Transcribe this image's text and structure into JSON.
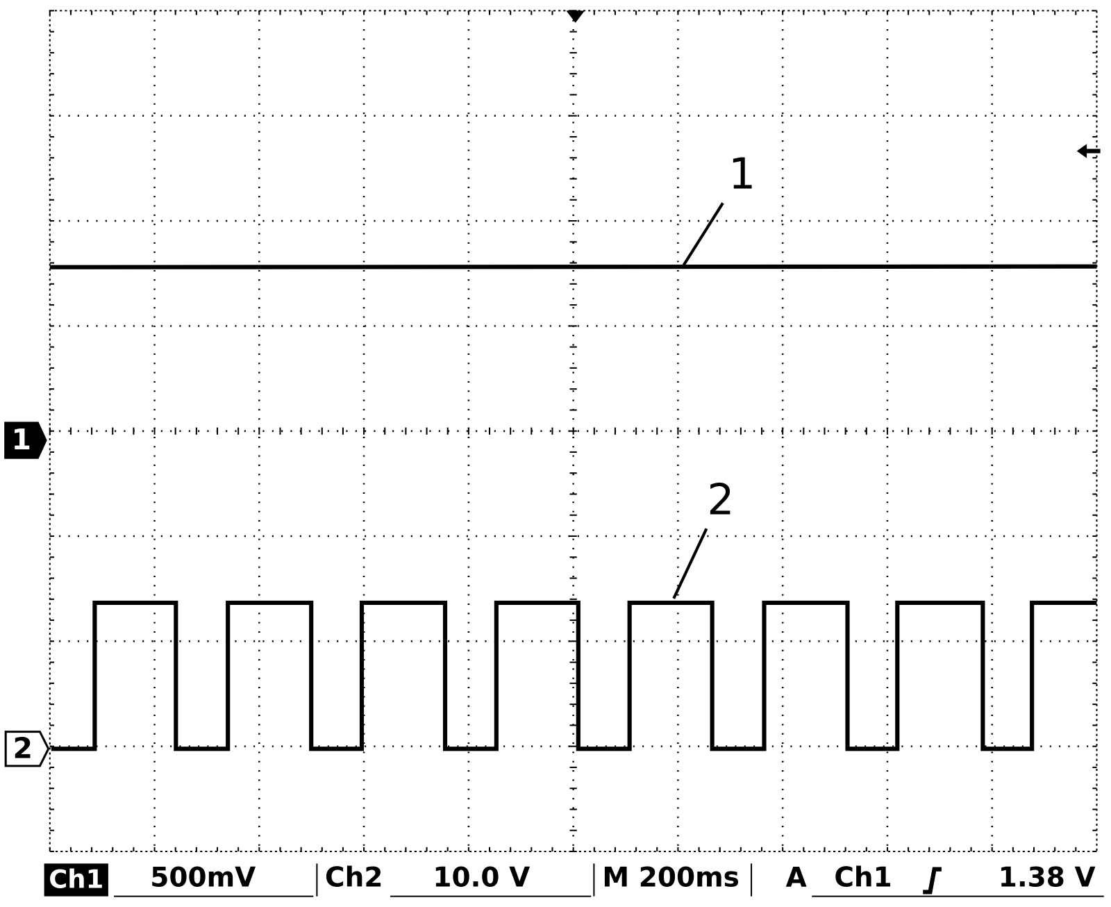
{
  "annotations": [
    "1",
    "2"
  ],
  "markers": {
    "ch1": "1",
    "ch2": "2"
  },
  "status_bar": {
    "ch1_label": "Ch1",
    "ch1_scale": "500mV",
    "ch2_label": "Ch2",
    "ch2_scale": "10.0 V",
    "timebase": "M 200ms",
    "trigger_mode": "A",
    "trigger_source": "Ch1",
    "trigger_level": "1.38 V"
  }
}
